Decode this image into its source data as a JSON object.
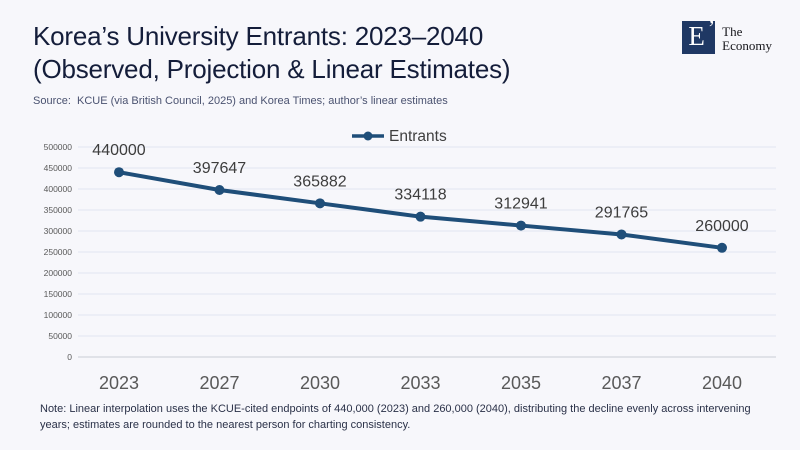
{
  "header": {
    "title_line1": "Korea’s University Entrants: 2023–2040",
    "title_line2": "(Observed, Projection & Linear Estimates)",
    "source": "Source:  KCUE (via British Council, 2025) and Korea Times; author’s linear estimates"
  },
  "logo": {
    "monogram": "E",
    "mark": "’",
    "name_line1": "The",
    "name_line2": "Economy"
  },
  "chart_data": {
    "type": "line",
    "title": "Korea’s University Entrants: 2023–2040 (Observed, Projection & Linear Estimates)",
    "categories": [
      "2023",
      "2027",
      "2030",
      "2033",
      "2035",
      "2037",
      "2040"
    ],
    "series": [
      {
        "name": "Entrants",
        "values": [
          440000,
          397647,
          365882,
          334118,
          312941,
          291765,
          260000
        ],
        "color": "#1f4e79"
      }
    ],
    "data_labels": [
      "440000",
      "397647",
      "365882",
      "334118",
      "312941",
      "291765",
      "260000"
    ],
    "xlabel": "",
    "ylabel": "",
    "ylim": [
      0,
      500000
    ],
    "ytick_step": 50000,
    "ytick_labels": [
      "0",
      "50000",
      "100000",
      "150000",
      "200000",
      "250000",
      "300000",
      "350000",
      "400000",
      "450000",
      "500000"
    ],
    "grid": true,
    "legend_position": "top-center"
  },
  "note": "Note: Linear interpolation uses the KCUE-cited endpoints of 440,000 (2023) and 260,000 (2040), distributing the decline evenly across intervening years; estimates are rounded to the nearest person for charting consistency.",
  "colors": {
    "background": "#f7f7fb",
    "title": "#141d3a",
    "source": "#4a5270",
    "series": "#1f4e79",
    "gridline": "#e2e6f0",
    "axis_line": "#c9ccd4",
    "y_tick_label": "#595959",
    "x_tick_label": "#595959",
    "data_label": "#3d3d3d",
    "legend_label": "#3f3f3f",
    "note": "#2a3148",
    "logo_square": "#1f3864",
    "logo_text": "#15151a"
  }
}
